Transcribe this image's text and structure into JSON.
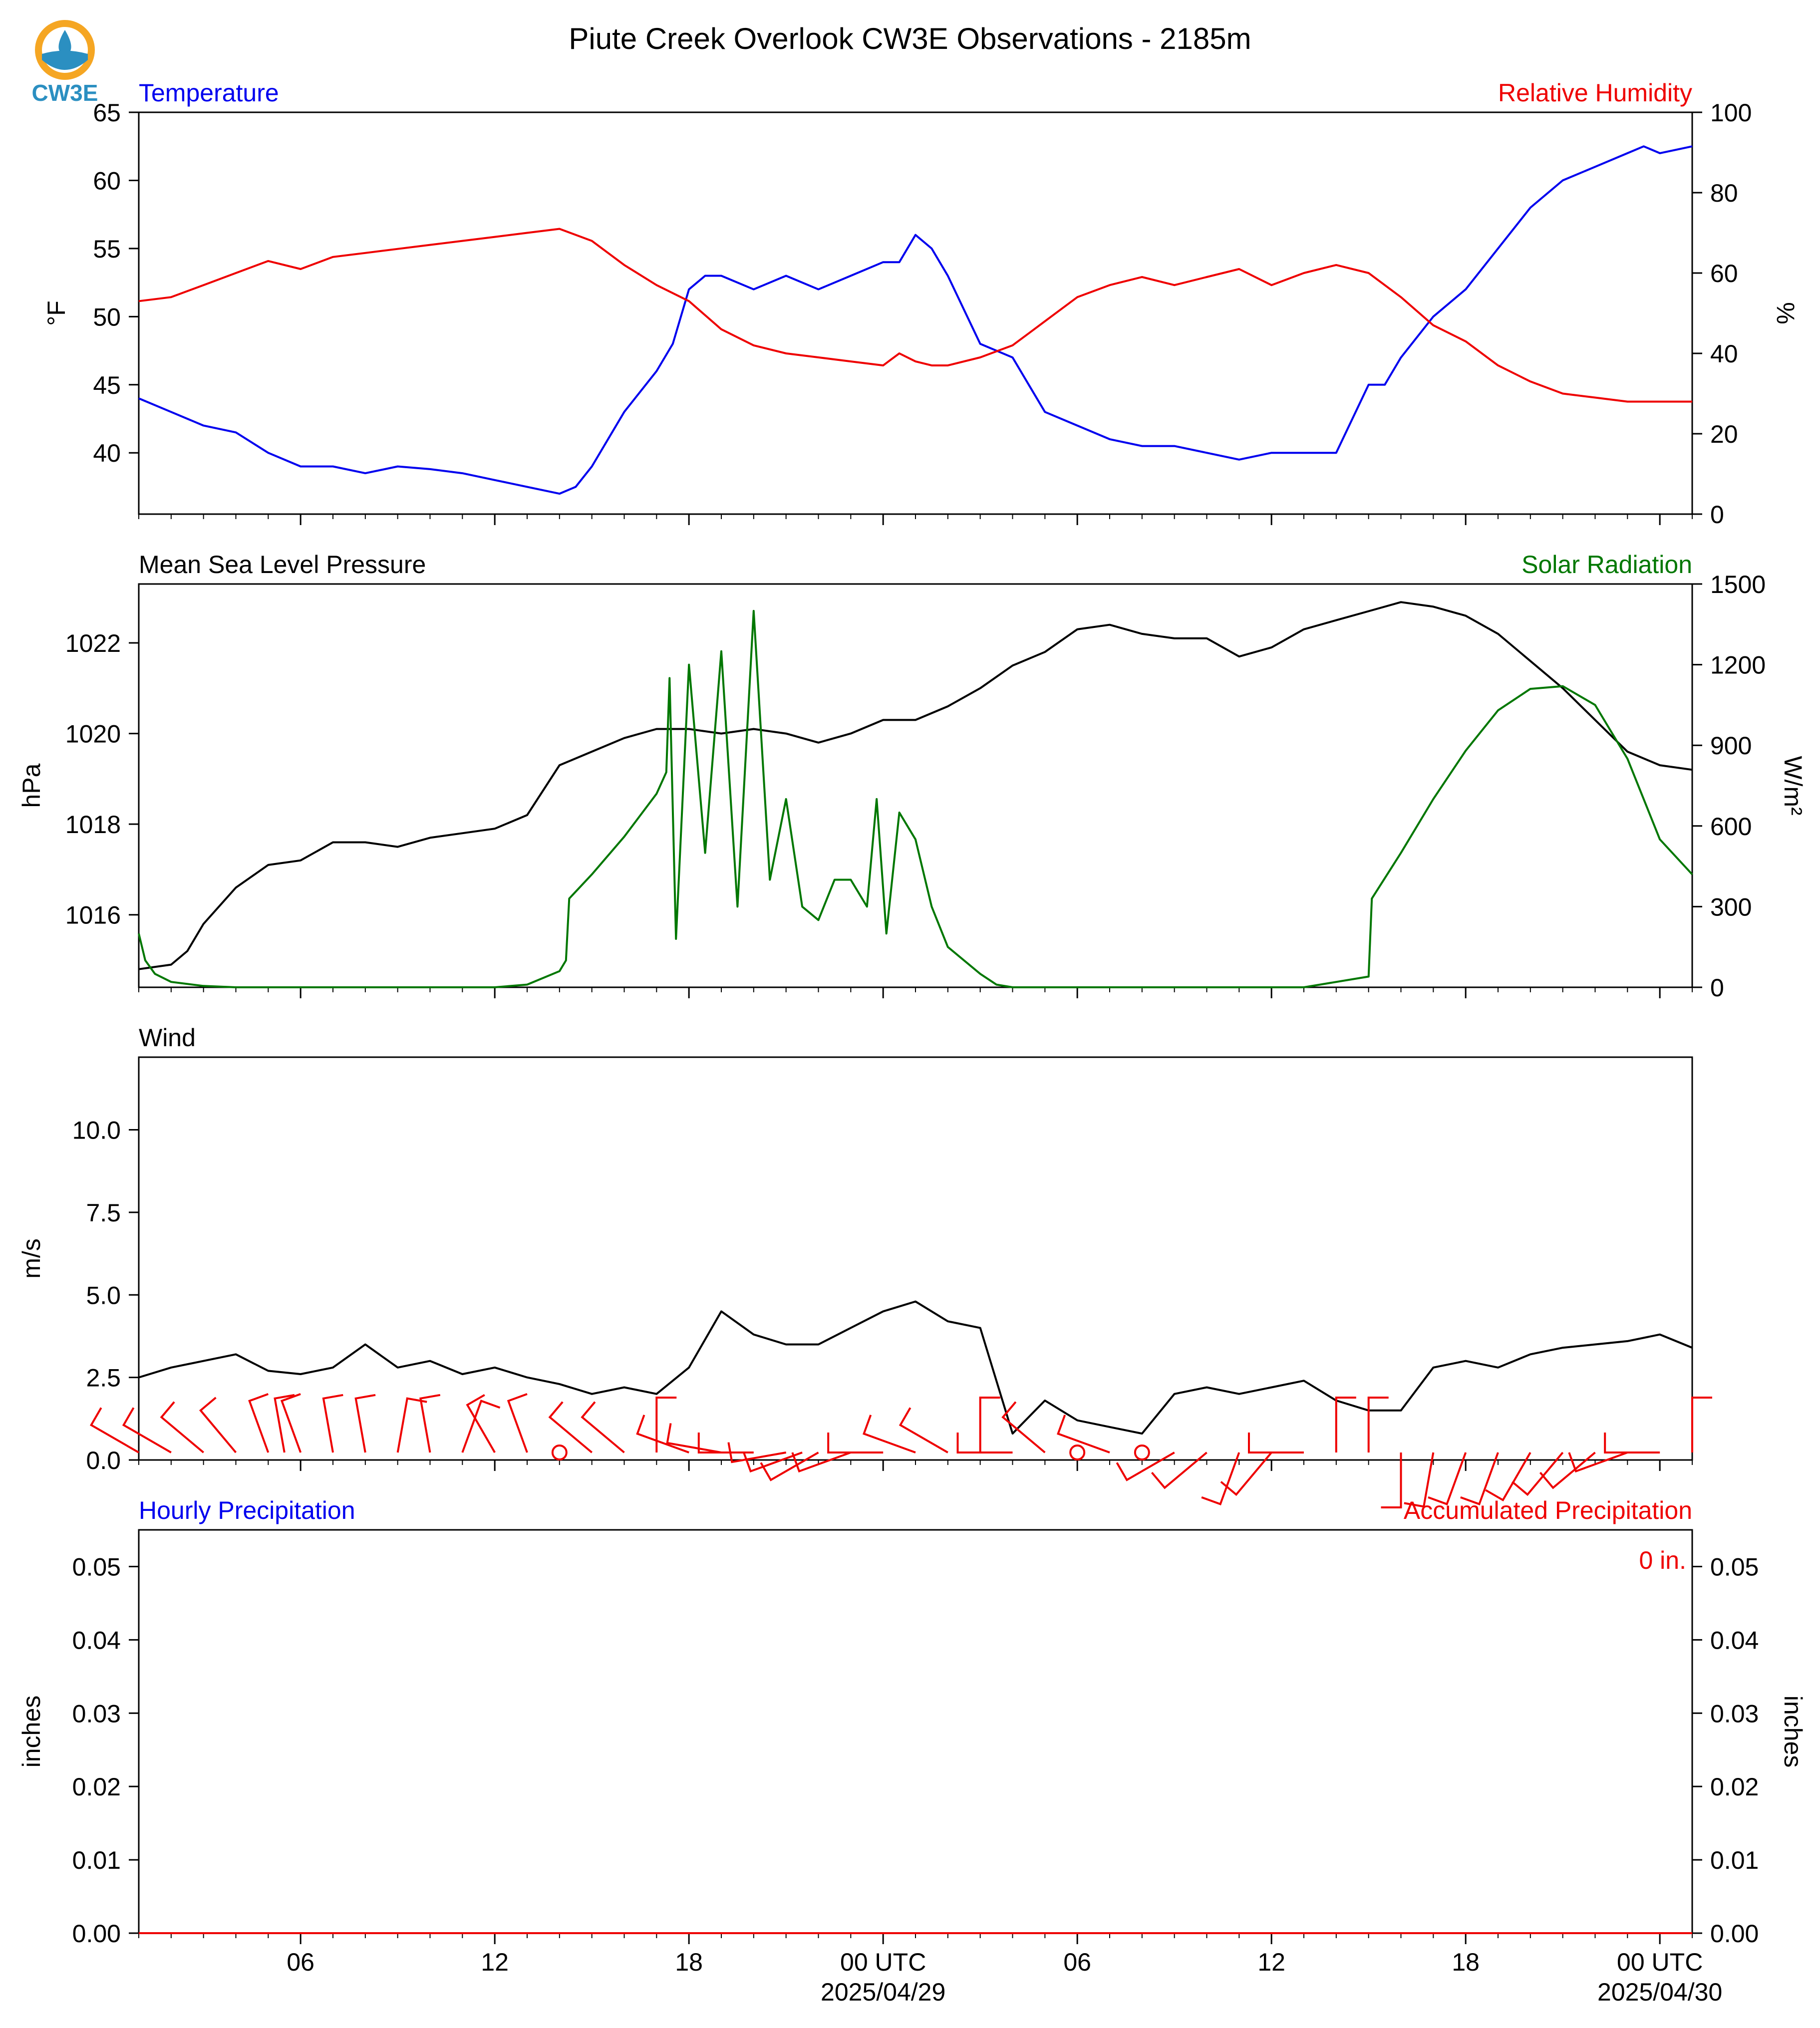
{
  "logo": {
    "text": "CW3E",
    "icon": "cw3e-water-drop-logo",
    "colors": {
      "ring": "#f5a623",
      "water": "#2b8fc1"
    }
  },
  "title": "Piute Creek Overlook CW3E Observations - 2185m",
  "time_axis": {
    "start": "2025-04-28 01:00 UTC",
    "end": "2025-04-30 02:00 UTC",
    "ticks": [
      {
        "h": 6,
        "label": "06"
      },
      {
        "h": 12,
        "label": "12"
      },
      {
        "h": 18,
        "label": "18"
      },
      {
        "h": 24,
        "label": "00 UTC",
        "date": "2025/04/29"
      },
      {
        "h": 30,
        "label": "06"
      },
      {
        "h": 36,
        "label": "12"
      },
      {
        "h": 42,
        "label": "18"
      },
      {
        "h": 48,
        "label": "00 UTC",
        "date": "2025/04/30"
      }
    ]
  },
  "chart_data": [
    {
      "type": "line",
      "left_title": "Temperature",
      "right_title": "Relative Humidity",
      "left_unit": "°F",
      "right_unit": "%",
      "ylim_left": [
        35.5,
        65
      ],
      "yticks_left": [
        40,
        45,
        50,
        55,
        60,
        65
      ],
      "ylim_right": [
        0,
        100
      ],
      "yticks_right": [
        0,
        20,
        40,
        60,
        80,
        100
      ],
      "series": [
        {
          "name": "Temperature",
          "axis": "left",
          "color": "#0000ee",
          "x": [
            1,
            2,
            3,
            4,
            5,
            6,
            7,
            8,
            9,
            10,
            11,
            12,
            13,
            14,
            14.5,
            15,
            16,
            17,
            17.5,
            18,
            18.5,
            19,
            20,
            21,
            22,
            23,
            24,
            24.5,
            25,
            25.5,
            26,
            27,
            28,
            28.5,
            29,
            30,
            31,
            32,
            33,
            34,
            35,
            36,
            37,
            38,
            39,
            39.5,
            40,
            41,
            42,
            43,
            44,
            45,
            46,
            47,
            47.5,
            48,
            49
          ],
          "y": [
            44,
            43,
            42,
            41.5,
            40,
            39,
            39,
            38.5,
            39,
            38.8,
            38.5,
            38,
            37.5,
            37,
            37.5,
            39,
            43,
            46,
            48,
            52,
            53,
            53,
            52,
            53,
            52,
            53,
            54,
            54,
            56,
            55,
            53,
            48,
            47,
            45,
            43,
            42,
            41,
            40.5,
            40.5,
            40,
            39.5,
            40,
            40,
            40,
            45,
            45,
            47,
            50,
            52,
            55,
            58,
            60,
            61,
            62,
            62.5,
            62,
            62.5
          ]
        },
        {
          "name": "Relative Humidity",
          "axis": "right",
          "color": "#ee0000",
          "x": [
            1,
            2,
            3,
            4,
            5,
            6,
            7,
            8,
            9,
            10,
            11,
            12,
            13,
            14,
            15,
            16,
            17,
            18,
            19,
            20,
            21,
            22,
            23,
            24,
            24.5,
            25,
            25.5,
            26,
            27,
            28,
            28.5,
            29,
            30,
            31,
            32,
            33,
            34,
            35,
            36,
            37,
            38,
            39,
            40,
            41,
            42,
            43,
            44,
            45,
            46,
            47,
            48,
            48.5,
            49
          ],
          "y": [
            53,
            54,
            57,
            60,
            63,
            61,
            64,
            65,
            66,
            67,
            68,
            69,
            70,
            71,
            68,
            62,
            57,
            53,
            46,
            42,
            40,
            39,
            38,
            37,
            40,
            38,
            37,
            37,
            39,
            42,
            45,
            48,
            54,
            57,
            59,
            57,
            59,
            61,
            57,
            60,
            62,
            60,
            54,
            47,
            43,
            37,
            33,
            30,
            29,
            28,
            28,
            28,
            28
          ]
        }
      ]
    },
    {
      "type": "line",
      "left_title": "Mean Sea Level Pressure",
      "right_title": "Solar Radiation",
      "left_unit": "hPa",
      "right_unit": "W/m²",
      "ylim_left": [
        1014.4,
        1023.3
      ],
      "yticks_left": [
        1016,
        1018,
        1020,
        1022
      ],
      "ylim_right": [
        0,
        1500
      ],
      "yticks_right": [
        0,
        300,
        600,
        900,
        1200,
        1500
      ],
      "series": [
        {
          "name": "Mean Sea Level Pressure",
          "axis": "left",
          "color": "#000000",
          "x": [
            1,
            2,
            2.5,
            3,
            4,
            5,
            6,
            7,
            8,
            9,
            10,
            11,
            12,
            13,
            14,
            15,
            16,
            17,
            18,
            19,
            20,
            21,
            22,
            23,
            24,
            25,
            26,
            27,
            28,
            29,
            30,
            31,
            32,
            33,
            34,
            35,
            36,
            37,
            38,
            39,
            40,
            41,
            42,
            43,
            44,
            45,
            46,
            47,
            48,
            49
          ],
          "y": [
            1014.8,
            1014.9,
            1015.2,
            1015.8,
            1016.6,
            1017.1,
            1017.2,
            1017.6,
            1017.6,
            1017.5,
            1017.7,
            1017.8,
            1017.9,
            1018.2,
            1019.3,
            1019.6,
            1019.9,
            1020.1,
            1020.1,
            1020.0,
            1020.1,
            1020.0,
            1019.8,
            1020.0,
            1020.3,
            1020.3,
            1020.6,
            1021.0,
            1021.5,
            1021.8,
            1022.3,
            1022.4,
            1022.2,
            1022.1,
            1022.1,
            1021.7,
            1021.9,
            1022.3,
            1022.5,
            1022.7,
            1022.9,
            1022.8,
            1022.6,
            1022.2,
            1021.6,
            1021.0,
            1020.3,
            1019.6,
            1019.3,
            1019.2
          ]
        },
        {
          "name": "Solar Radiation",
          "axis": "right",
          "color": "#007700",
          "x": [
            1,
            1.2,
            1.5,
            2,
            3,
            4,
            6,
            8,
            10,
            12,
            13,
            14,
            14.2,
            14.3,
            15,
            16,
            17,
            17.3,
            17.4,
            17.6,
            18,
            18.5,
            19,
            19.5,
            20,
            20.5,
            21,
            21.5,
            22,
            22.5,
            23,
            23.5,
            23.8,
            24.1,
            24.5,
            25,
            25.5,
            26,
            27,
            27.5,
            28,
            30,
            34,
            37,
            37.5,
            39,
            39.1,
            40,
            41,
            42,
            43,
            44,
            45,
            46,
            47,
            48,
            49
          ],
          "y": [
            200,
            100,
            50,
            20,
            5,
            0,
            0,
            0,
            0,
            0,
            10,
            60,
            100,
            330,
            420,
            560,
            720,
            800,
            1150,
            180,
            1200,
            500,
            1250,
            300,
            1400,
            400,
            700,
            300,
            250,
            400,
            400,
            300,
            700,
            200,
            650,
            550,
            300,
            150,
            50,
            10,
            0,
            0,
            0,
            0,
            10,
            40,
            330,
            500,
            700,
            880,
            1030,
            1110,
            1120,
            1050,
            850,
            550,
            420
          ]
        }
      ]
    },
    {
      "type": "line",
      "left_title": "Wind",
      "left_unit": "m/s",
      "ylim_left": [
        0,
        12.2
      ],
      "yticks_left": [
        0.0,
        2.5,
        5.0,
        7.5,
        10.0
      ],
      "series": [
        {
          "name": "Wind Speed",
          "axis": "left",
          "color": "#000000",
          "x": [
            1,
            2,
            3,
            4,
            5,
            6,
            7,
            8,
            9,
            10,
            11,
            12,
            13,
            14,
            15,
            16,
            17,
            18,
            19,
            20,
            21,
            22,
            23,
            24,
            25,
            26,
            27,
            28,
            29,
            30,
            31,
            32,
            33,
            34,
            35,
            36,
            37,
            38,
            39,
            40,
            41,
            42,
            43,
            44,
            45,
            46,
            47,
            48,
            49
          ],
          "y": [
            2.5,
            2.8,
            3.0,
            3.2,
            2.7,
            2.6,
            2.8,
            3.5,
            2.8,
            3.0,
            2.6,
            2.8,
            2.5,
            2.3,
            2.0,
            2.2,
            2.0,
            2.8,
            4.5,
            3.8,
            3.5,
            3.5,
            4.0,
            4.5,
            4.8,
            4.2,
            4.0,
            0.8,
            1.8,
            1.2,
            1.0,
            0.8,
            2.0,
            2.2,
            2.0,
            2.2,
            2.4,
            1.8,
            1.5,
            1.5,
            2.8,
            3.0,
            2.8,
            3.2,
            3.4,
            3.5,
            3.6,
            3.8,
            3.4
          ]
        }
      ],
      "barbs": {
        "color": "#ee0000",
        "x": [
          1,
          2,
          3,
          4,
          5,
          5.5,
          6,
          7,
          8,
          9,
          10,
          11,
          12,
          13,
          14,
          15,
          16,
          17,
          18,
          19,
          20,
          21,
          21.5,
          22,
          23,
          24,
          25,
          26,
          27,
          28,
          29,
          30,
          31,
          32,
          33,
          34,
          35,
          36,
          37,
          38,
          39,
          40,
          41,
          42,
          43,
          44,
          45,
          46,
          47,
          48,
          49
        ],
        "speed_ms": [
          3.0,
          2.5,
          2.5,
          2.8,
          2.0,
          2.5,
          2.5,
          2.5,
          2.5,
          2.5,
          2.0,
          2.5,
          2.5,
          2.5,
          0.2,
          2.0,
          2.5,
          0.5,
          4.5,
          4.0,
          4.0,
          3.5,
          3.5,
          3.0,
          3.5,
          4.5,
          4.0,
          3.0,
          1.0,
          3.0,
          2.5,
          0.2,
          2.5,
          0.2,
          2.0,
          2.0,
          2.0,
          2.0,
          2.5,
          0.8,
          1.2,
          2.5,
          2.5,
          2.5,
          3.0,
          3.5,
          4.0,
          4.0,
          4.0,
          2.0,
          1.0
        ],
        "dir_deg": [
          300,
          300,
          310,
          320,
          340,
          350,
          340,
          350,
          350,
          10,
          350,
          20,
          330,
          340,
          0,
          310,
          310,
          0,
          290,
          280,
          270,
          260,
          250,
          240,
          250,
          270,
          290,
          300,
          0,
          270,
          310,
          0,
          290,
          0,
          240,
          230,
          200,
          220,
          270,
          0,
          0,
          180,
          190,
          200,
          200,
          210,
          220,
          230,
          250,
          270,
          0
        ]
      }
    },
    {
      "type": "line",
      "left_title": "Hourly Precipitation",
      "right_title": "Accumulated Precipitation",
      "left_unit": "inches",
      "right_unit": "inches",
      "ylim_left": [
        0,
        0.055
      ],
      "yticks_left": [
        0.0,
        0.01,
        0.02,
        0.03,
        0.04,
        0.05
      ],
      "ylim_right": [
        0,
        0.055
      ],
      "yticks_right": [
        0.0,
        0.01,
        0.02,
        0.03,
        0.04,
        0.05
      ],
      "total_label": "0 in.",
      "series": [
        {
          "name": "Hourly Precipitation",
          "axis": "left",
          "color": "#0000ee",
          "x": [
            1,
            49
          ],
          "y": [
            0,
            0
          ]
        },
        {
          "name": "Accumulated Precipitation",
          "axis": "right",
          "color": "#ee0000",
          "x": [
            1,
            49
          ],
          "y": [
            0,
            0
          ]
        }
      ]
    }
  ]
}
